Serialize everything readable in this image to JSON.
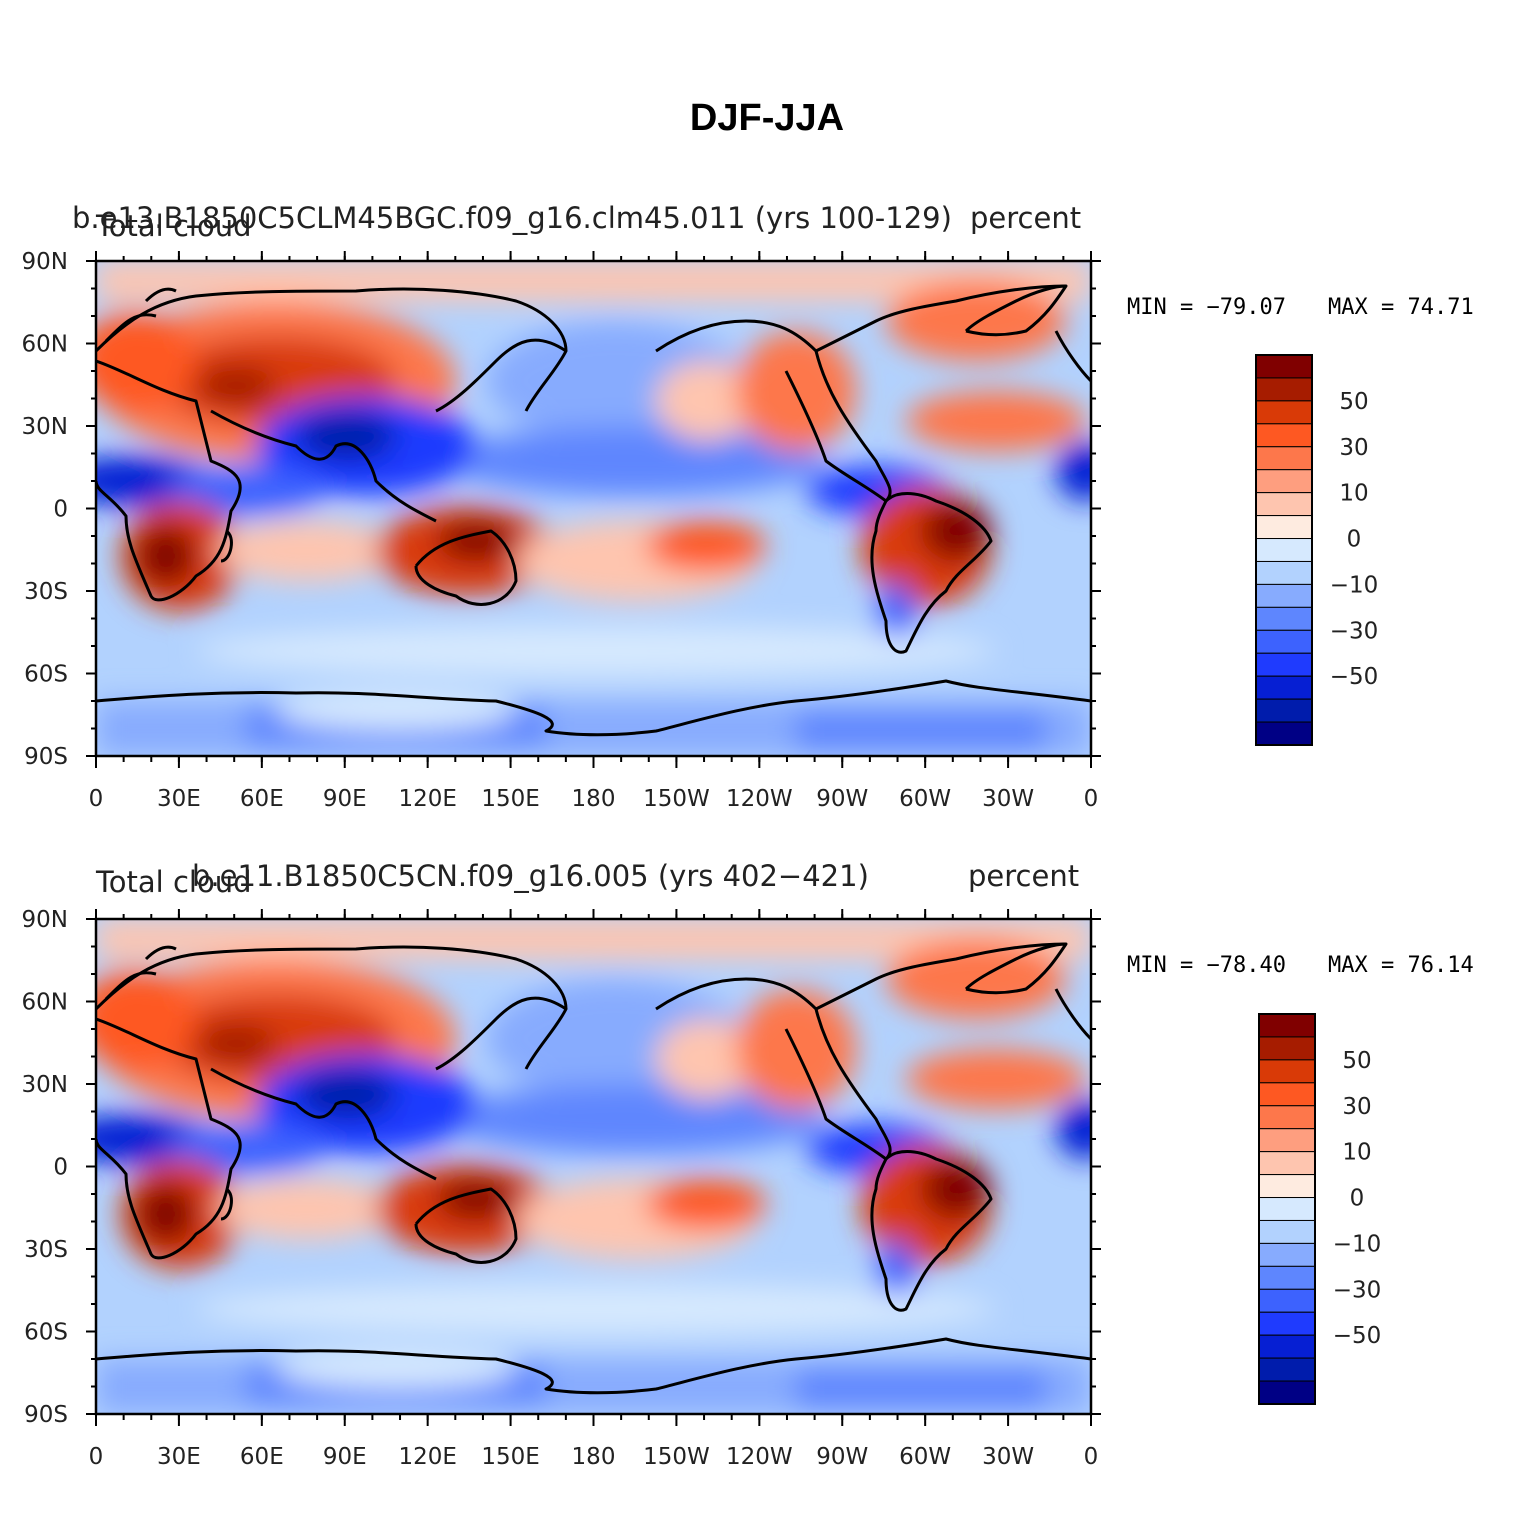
{
  "title": "DJF-JJA",
  "lat_labels": [
    "90N",
    "60N",
    "30N",
    "0",
    "30S",
    "60S",
    "90S"
  ],
  "lon_labels": [
    "0",
    "30E",
    "60E",
    "90E",
    "120E",
    "150E",
    "180",
    "150W",
    "120W",
    "90W",
    "60W",
    "30W",
    "0"
  ],
  "colorbar": {
    "labels": [
      "50",
      "30",
      "10",
      "0",
      "−10",
      "−30",
      "−50"
    ],
    "colors": [
      "#800000",
      "#a61c00",
      "#d93a07",
      "#fe5822",
      "#fd774b",
      "#fe9e7f",
      "#fec5af",
      "#feebe0",
      "#d6e9fe",
      "#b2d2fe",
      "#87abfe",
      "#5e86fe",
      "#3d62fe",
      "#1f3bfe",
      "#061fd3",
      "#001cac",
      "#000085"
    ]
  },
  "panels": [
    {
      "variable": "Total cloud",
      "case": "b.e13.B1850C5CLM45BGC.f09_g16.clm45.011 (yrs 100-129)",
      "units": "percent",
      "min_label": "MIN = −79.07",
      "max_label": "MAX =   74.71"
    },
    {
      "variable": "Total cloud",
      "case": "b.e11.B1850C5CN.f09_g16.005 (yrs 402−421)",
      "units": "percent",
      "min_label": "MIN = −78.40",
      "max_label": "MAX =   76.14"
    }
  ]
}
